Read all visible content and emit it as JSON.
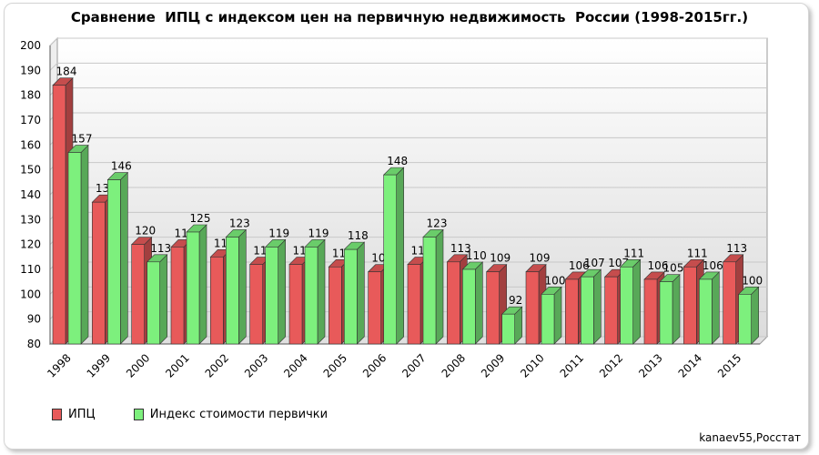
{
  "chart_data": {
    "type": "bar",
    "title": "Сравнение  ИПЦ с индексом цен на первичную недвижимость  России (1998-2015гг.)",
    "categories": [
      "1998",
      "1999",
      "2000",
      "2001",
      "2002",
      "2003",
      "2004",
      "2005",
      "2006",
      "2007",
      "2008",
      "2009",
      "2010",
      "2011",
      "2012",
      "2013",
      "2014",
      "2015"
    ],
    "series": [
      {
        "name": "ИПЦ",
        "color": "#e85a5a",
        "values": [
          184,
          137,
          120,
          119,
          115,
          112,
          112,
          111,
          109,
          112,
          113,
          109,
          109,
          106,
          107,
          106,
          111,
          113
        ]
      },
      {
        "name": "Индекс стоимости первички",
        "color": "#7df07d",
        "values": [
          157,
          146,
          113,
          125,
          123,
          119,
          119,
          118,
          148,
          123,
          110,
          92,
          100,
          107,
          111,
          105,
          106,
          100
        ]
      }
    ],
    "ylim": [
      80,
      200
    ],
    "yticks": [
      80,
      90,
      100,
      110,
      120,
      130,
      140,
      150,
      160,
      170,
      180,
      190,
      200
    ],
    "grid": true,
    "legend_position": "bottom-left"
  },
  "source": "kanaev55,Росстат"
}
